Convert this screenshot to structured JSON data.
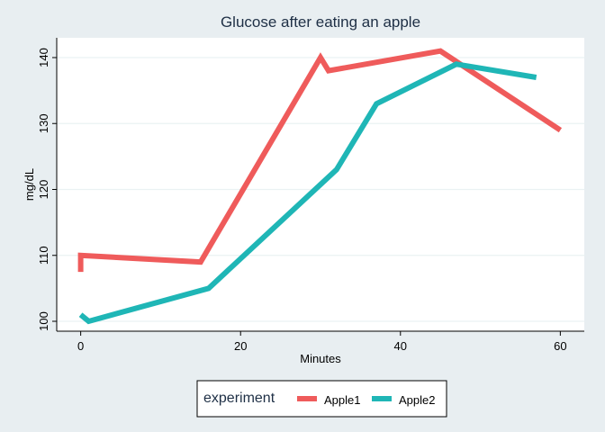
{
  "chart_data": {
    "type": "line",
    "title": "Glucose after eating an apple",
    "xlabel": "Minutes",
    "ylabel": "mg/dL",
    "xlim": [
      -3,
      63
    ],
    "ylim": [
      98.5,
      143
    ],
    "xticks": [
      0,
      20,
      40,
      60
    ],
    "yticks": [
      100,
      110,
      120,
      130,
      140
    ],
    "grid": true,
    "legend": {
      "title": "experiment",
      "position": "bottom-center"
    },
    "colors": {
      "background": "#e8eef1",
      "plot_background": "#ffffff",
      "gridline": "#eaf2f3",
      "axis": "#000000"
    },
    "series": [
      {
        "name": "Apple1",
        "color": "#ef5b5b",
        "points": [
          [
            0,
            107.5
          ],
          [
            0,
            110
          ],
          [
            15,
            109
          ],
          [
            30,
            140
          ],
          [
            31,
            138
          ],
          [
            45,
            141
          ],
          [
            60,
            129
          ]
        ]
      },
      {
        "name": "Apple2",
        "color": "#1fb6b6",
        "points": [
          [
            0,
            101
          ],
          [
            1,
            100
          ],
          [
            16,
            105
          ],
          [
            32,
            123
          ],
          [
            37,
            133
          ],
          [
            47,
            139
          ],
          [
            57,
            137
          ]
        ]
      }
    ]
  }
}
